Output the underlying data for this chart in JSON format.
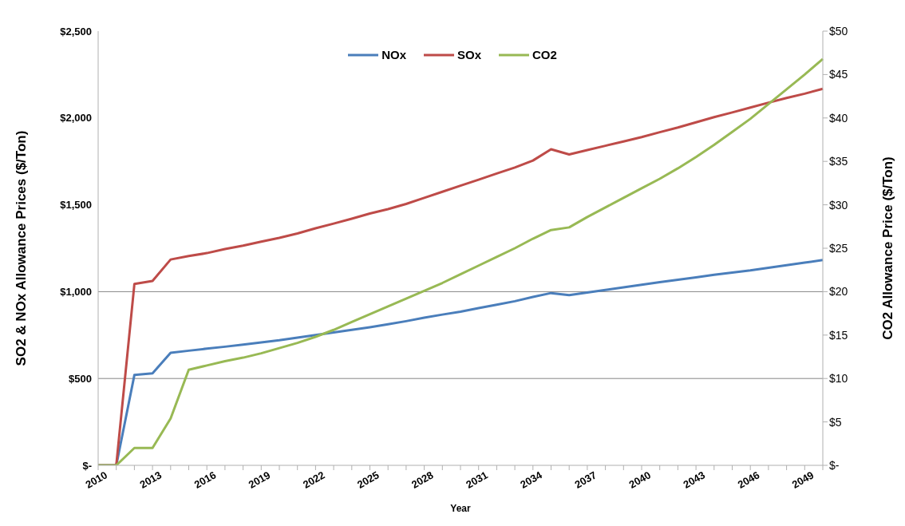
{
  "chart_data": {
    "type": "line",
    "xlabel": "Year",
    "ylabel": "SO2 & NOx Allowance Prices ($/Ton)",
    "y2label": "CO2 Allowance Price ($/Ton)",
    "categories": [
      "2010",
      null,
      null,
      "2013",
      null,
      null,
      "2016",
      null,
      null,
      "2019",
      null,
      null,
      "2022",
      null,
      null,
      "2025",
      null,
      null,
      "2028",
      null,
      null,
      "2031",
      null,
      null,
      "2034",
      null,
      null,
      "2037",
      null,
      null,
      "2040",
      null,
      null,
      "2043",
      null,
      null,
      "2046",
      null,
      null,
      "2049",
      null
    ],
    "series": [
      {
        "name": "NOx",
        "color": "#4a7ebb",
        "values": [
          0,
          0,
          520,
          530,
          648,
          660,
          672,
          683,
          695,
          708,
          720,
          735,
          750,
          765,
          780,
          795,
          812,
          830,
          850,
          868,
          885,
          905,
          925,
          945,
          970,
          992,
          980,
          995,
          1010,
          1025,
          1040,
          1055,
          1068,
          1082,
          1097,
          1110,
          1122,
          1137,
          1152,
          1167,
          1182
        ]
      },
      {
        "name": "SOx",
        "color": "#be4b48",
        "values": [
          0,
          0,
          1044,
          1062,
          1185,
          1205,
          1222,
          1245,
          1265,
          1288,
          1310,
          1335,
          1365,
          1392,
          1420,
          1450,
          1475,
          1505,
          1540,
          1575,
          1610,
          1645,
          1680,
          1715,
          1755,
          1820,
          1790,
          1815,
          1840,
          1865,
          1890,
          1918,
          1945,
          1975,
          2005,
          2032,
          2060,
          2088,
          2115,
          2140,
          2168
        ]
      },
      {
        "name": "CO2",
        "color": "#98b954",
        "axis": "y2",
        "values": [
          0,
          0,
          2,
          2,
          5.4,
          11,
          11.5,
          12,
          12.4,
          12.9,
          13.5,
          14.1,
          14.8,
          15.6,
          16.5,
          17.4,
          18.3,
          19.2,
          20.1,
          21,
          22,
          23,
          24,
          25,
          26.1,
          27.1,
          27.4,
          28.6,
          29.7,
          30.8,
          31.9,
          33,
          34.2,
          35.5,
          36.9,
          38.4,
          39.9,
          41.6,
          43.3,
          45,
          46.8
        ]
      }
    ],
    "ylim": [
      0,
      2500
    ],
    "yticks": [
      {
        "value": 0,
        "label": "$-"
      },
      {
        "value": 500,
        "label": "$500"
      },
      {
        "value": 1000,
        "label": "$1,000"
      },
      {
        "value": 1500,
        "label": "$1,500"
      },
      {
        "value": 2000,
        "label": "$2,000"
      },
      {
        "value": 2500,
        "label": "$2,500"
      }
    ],
    "y2lim": [
      0,
      50
    ],
    "y2ticks": [
      {
        "value": 0,
        "label": "$-"
      },
      {
        "value": 5,
        "label": "$5"
      },
      {
        "value": 10,
        "label": "$10"
      },
      {
        "value": 15,
        "label": "$15"
      },
      {
        "value": 20,
        "label": "$20"
      },
      {
        "value": 25,
        "label": "$25"
      },
      {
        "value": 30,
        "label": "$30"
      },
      {
        "value": 35,
        "label": "$35"
      },
      {
        "value": 40,
        "label": "$40"
      },
      {
        "value": 45,
        "label": "$45"
      },
      {
        "value": 50,
        "label": "$50"
      }
    ],
    "ref_lines": [
      {
        "axis": "y",
        "value": 500,
        "color": "#868686"
      },
      {
        "axis": "y",
        "value": 1000,
        "color": "#868686"
      }
    ],
    "grid": false,
    "legend": "top",
    "marker": "none",
    "line_style": "solid"
  }
}
